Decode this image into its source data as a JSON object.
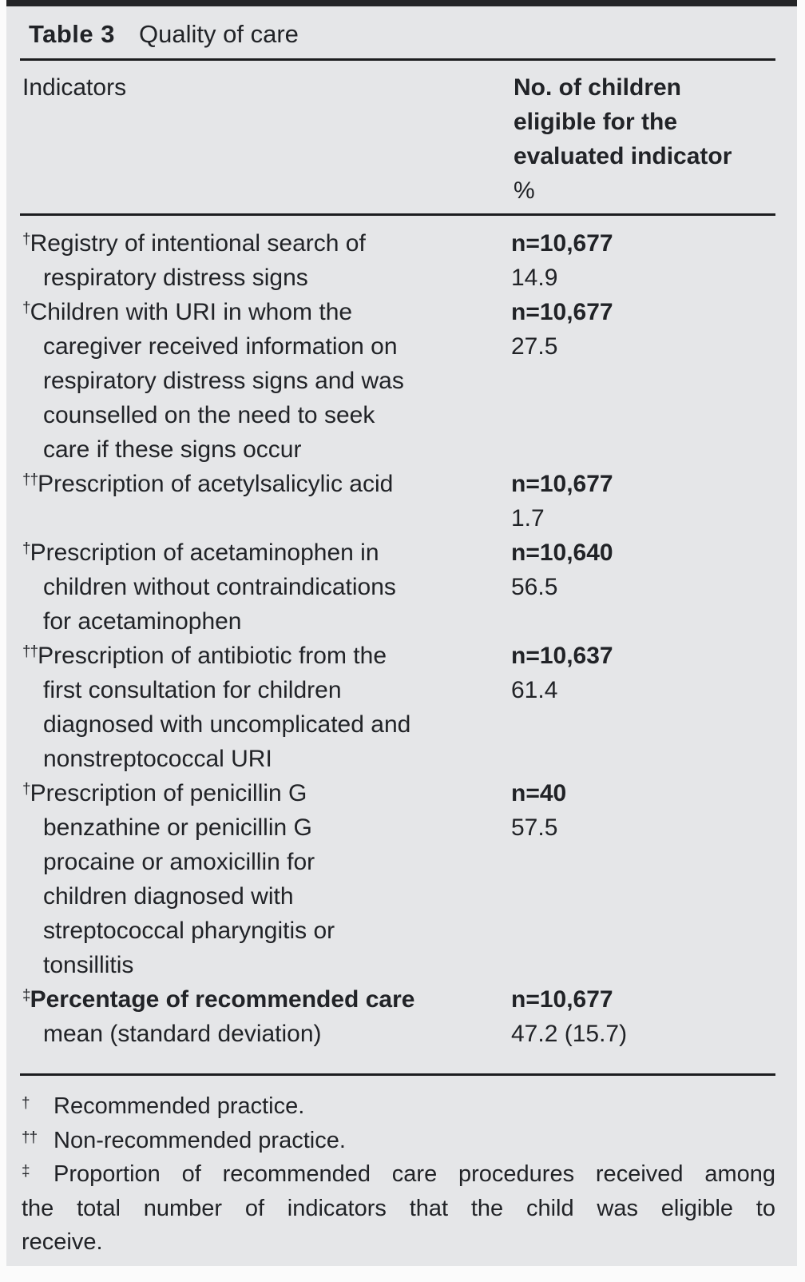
{
  "colors": {
    "card_background": "#e5e6e8",
    "page_background": "#fbfbfb",
    "rule": "#1c1d1f",
    "text": "#212327"
  },
  "table": {
    "label": "Table 3",
    "title": "Quality of care",
    "header": {
      "col1": "Indicators",
      "col2": "No. of children\neligible for the\nevaluated indicator",
      "col2_unit": "%"
    },
    "rows": [
      {
        "marker": "†",
        "indicator": "Registry of intentional search of\nrespiratory distress signs",
        "n": "n=10,677",
        "value": "14.9"
      },
      {
        "marker": "†",
        "indicator": "Children with URI in whom the\ncaregiver received information on\nrespiratory distress signs and was\ncounselled on the need to seek\ncare if these signs occur",
        "n": "n=10,677",
        "value": "27.5"
      },
      {
        "marker": "††",
        "indicator": "Prescription of acetylsalicylic acid",
        "n": "n=10,677",
        "value": "1.7"
      },
      {
        "marker": "†",
        "indicator": "Prescription of acetaminophen in\nchildren without contraindications\nfor acetaminophen",
        "n": "n=10,640",
        "value": "56.5"
      },
      {
        "marker": "††",
        "indicator": "Prescription of antibiotic from the\nfirst consultation for children\ndiagnosed with uncomplicated and\nnonstreptococcal URI",
        "n": "n=10,637",
        "value": "61.4"
      },
      {
        "marker": "†",
        "indicator": "Prescription of penicillin G\nbenzathine or penicillin G\nprocaine or amoxicillin for\nchildren diagnosed with\nstreptococcal pharyngitis or\ntonsillitis",
        "n": "n=40",
        "value": "57.5"
      },
      {
        "marker": "‡",
        "indicator_bold": "Percentage of recommended care",
        "indicator_line2": "mean (standard deviation)",
        "n": "n=10,677",
        "value": "47.2 (15.7)"
      }
    ],
    "footnotes": [
      {
        "marker": "†",
        "text": "Recommended practice."
      },
      {
        "marker": "††",
        "text": "Non-recommended practice."
      },
      {
        "marker": "‡",
        "text": "Proportion of recommended care procedures received among\nthe total number of indicators that the child was eligible to\nreceive."
      }
    ]
  }
}
